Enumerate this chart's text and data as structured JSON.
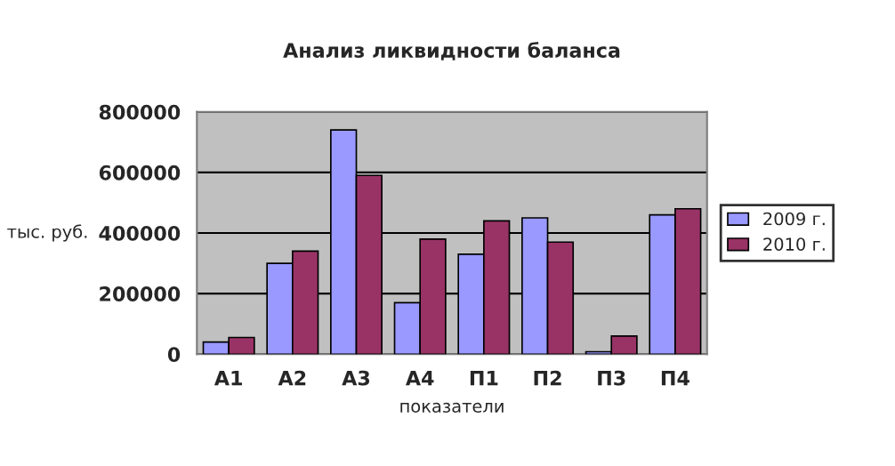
{
  "chart_data": {
    "type": "bar",
    "title": "Анализ ликвидности баланса",
    "xlabel": "показатели",
    "ylabel": "тыс. руб.",
    "categories": [
      "А1",
      "А2",
      "А3",
      "А4",
      "П1",
      "П2",
      "П3",
      "П4"
    ],
    "series": [
      {
        "name": "2009 г.",
        "color": "#9999ff",
        "values": [
          40000,
          300000,
          740000,
          170000,
          330000,
          450000,
          8000,
          460000
        ]
      },
      {
        "name": "2010 г.",
        "color": "#993366",
        "values": [
          55000,
          340000,
          590000,
          380000,
          440000,
          370000,
          60000,
          480000
        ]
      }
    ],
    "ylim": [
      0,
      800000
    ],
    "yticks": [
      0,
      200000,
      400000,
      600000,
      800000
    ],
    "grid": "y",
    "legend": "right"
  }
}
